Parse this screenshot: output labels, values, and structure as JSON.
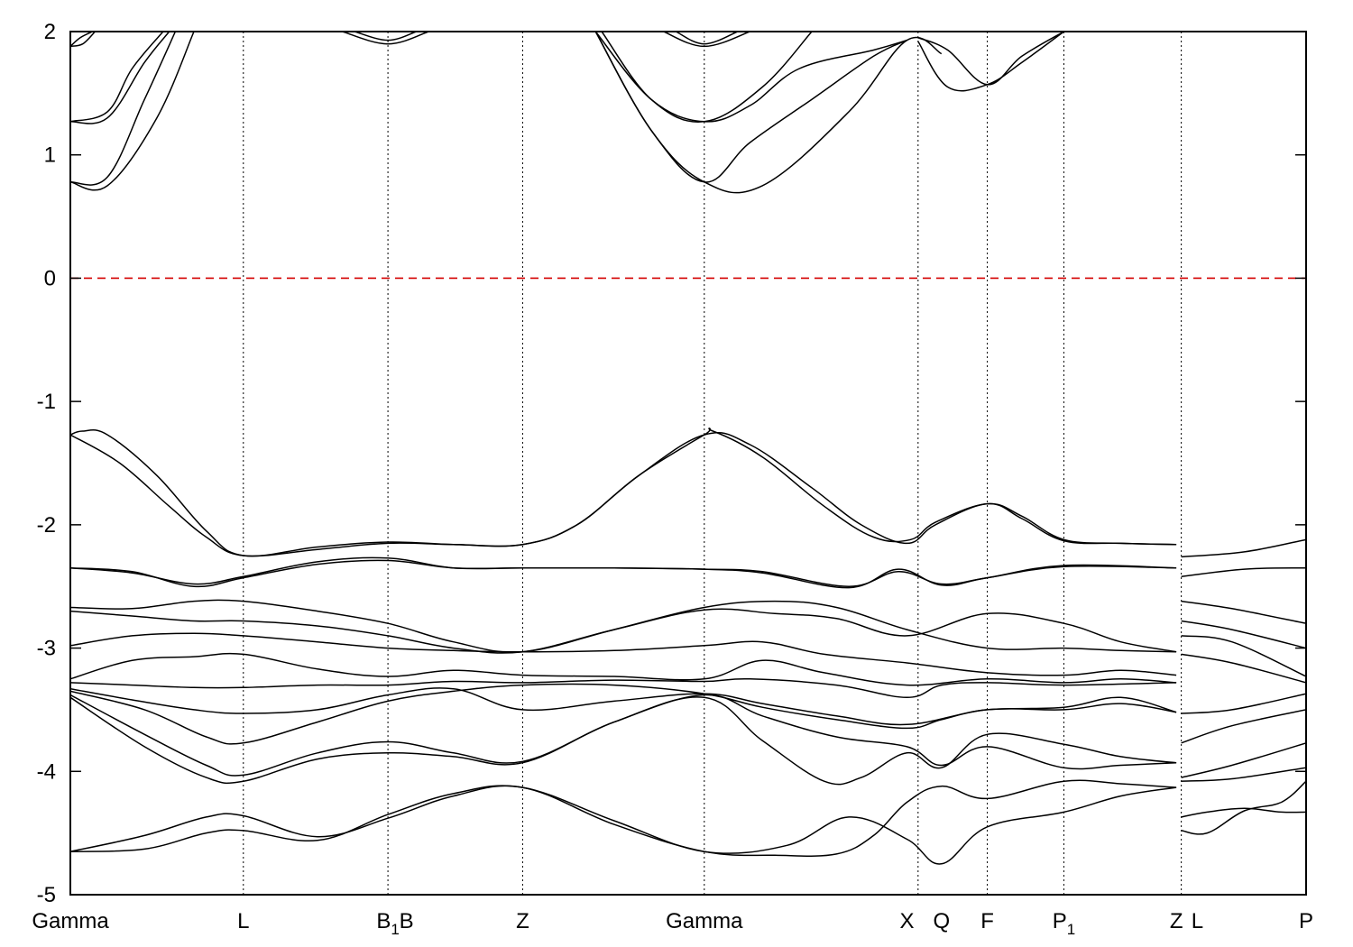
{
  "chart_data": {
    "type": "line",
    "title": "",
    "xlabel": "",
    "ylabel": "",
    "ylim": [
      -5,
      2
    ],
    "yticks": [
      -5,
      -4,
      -3,
      -2,
      -1,
      0,
      1,
      2
    ],
    "xlim": [
      0,
      10
    ],
    "kpoints": [
      {
        "label": "Gamma",
        "sub": "",
        "x": 0.0
      },
      {
        "label": "L",
        "sub": "",
        "x": 1.4
      },
      {
        "label": "B",
        "sub": "1",
        "x": 2.57
      },
      {
        "label": "B",
        "sub": "",
        "x": 2.72
      },
      {
        "label": "Z",
        "sub": "",
        "x": 3.66
      },
      {
        "label": "Gamma",
        "sub": "",
        "x": 5.13
      },
      {
        "label": "X",
        "sub": "",
        "x": 6.77
      },
      {
        "label": "Q",
        "sub": "",
        "x": 7.05
      },
      {
        "label": "F",
        "sub": "",
        "x": 7.42
      },
      {
        "label": "P",
        "sub": "1",
        "x": 8.04
      },
      {
        "label": "Z",
        "sub": "",
        "x": 8.95
      },
      {
        "label": "L",
        "sub": "",
        "x": 9.12
      },
      {
        "label": "P",
        "sub": "",
        "x": 10.0
      }
    ],
    "vlines": [
      1.4,
      2.57,
      3.66,
      5.13,
      6.86,
      7.42,
      8.04,
      8.99
    ],
    "fermi_level": 0,
    "grid": false,
    "legend": "none",
    "colors": {
      "bands": "#000000",
      "fermi": "#d40000"
    },
    "series": [
      {
        "x": [
          0.0,
          0.4,
          0.8,
          1.1,
          1.4,
          2.0,
          2.57,
          3.1,
          3.66,
          4.1,
          4.6,
          5.13,
          5.5,
          6.0,
          6.4,
          6.77,
          7.0,
          7.42,
          7.7,
          8.04,
          8.5,
          8.95
        ],
        "values": [
          -1.27,
          -1.5,
          -1.85,
          -2.1,
          -2.25,
          -2.2,
          -2.15,
          -2.16,
          -2.16,
          -2.0,
          -1.6,
          -1.27,
          -1.35,
          -1.7,
          -2.0,
          -2.15,
          -2.0,
          -1.83,
          -1.95,
          -2.13,
          -2.15,
          -2.16
        ]
      },
      {
        "x": [
          0.0,
          0.1,
          0.3,
          0.7,
          1.1,
          1.4,
          2.0,
          2.57,
          3.1,
          3.66,
          4.1,
          4.6,
          5.13,
          5.2,
          5.6,
          6.1,
          6.5,
          6.8,
          7.0,
          7.42,
          7.7,
          8.04,
          8.5,
          8.95
        ],
        "values": [
          -1.27,
          -1.24,
          -1.27,
          -1.6,
          -2.05,
          -2.25,
          -2.18,
          -2.14,
          -2.16,
          -2.16,
          -2.0,
          -1.6,
          -1.27,
          -1.24,
          -1.45,
          -1.85,
          -2.1,
          -2.12,
          -1.98,
          -1.83,
          -1.93,
          -2.12,
          -2.15,
          -2.16
        ]
      },
      {
        "x": [
          8.99,
          9.5,
          10.0
        ],
        "values": [
          -2.26,
          -2.22,
          -2.12
        ]
      },
      {
        "x": [
          8.99,
          9.5,
          10.0
        ],
        "values": [
          -2.42,
          -2.36,
          -2.35
        ]
      },
      {
        "x": [
          0.0,
          0.5,
          1.0,
          1.4,
          2.0,
          2.57,
          3.1,
          3.66,
          4.4,
          5.13,
          5.6,
          6.3,
          6.7,
          7.05,
          7.42,
          8.04,
          8.95
        ],
        "values": [
          -2.35,
          -2.38,
          -2.5,
          -2.43,
          -2.32,
          -2.29,
          -2.35,
          -2.35,
          -2.35,
          -2.36,
          -2.38,
          -2.5,
          -2.38,
          -2.48,
          -2.43,
          -2.33,
          -2.35
        ]
      },
      {
        "x": [
          0.0,
          0.5,
          1.0,
          1.4,
          2.0,
          2.57,
          3.1,
          3.66,
          4.4,
          5.13,
          5.6,
          6.3,
          6.7,
          7.05,
          7.42,
          8.04,
          8.95
        ],
        "values": [
          -2.35,
          -2.39,
          -2.48,
          -2.42,
          -2.3,
          -2.27,
          -2.35,
          -2.35,
          -2.35,
          -2.36,
          -2.39,
          -2.51,
          -2.36,
          -2.49,
          -2.43,
          -2.34,
          -2.35
        ]
      },
      {
        "x": [
          0.0,
          0.5,
          1.0,
          1.4,
          2.0,
          2.57,
          3.1,
          3.66,
          4.4,
          5.13,
          5.7,
          6.2,
          6.77,
          7.42,
          8.04,
          8.5,
          8.95
        ],
        "values": [
          -2.67,
          -2.68,
          -2.62,
          -2.62,
          -2.7,
          -2.8,
          -2.95,
          -3.03,
          -2.85,
          -2.67,
          -2.62,
          -2.67,
          -2.85,
          -3.0,
          -3.0,
          -3.02,
          -3.03
        ]
      },
      {
        "x": [
          0.0,
          0.5,
          1.0,
          1.4,
          2.0,
          2.57,
          3.1,
          3.66,
          4.4,
          5.13,
          5.7,
          6.2,
          6.77,
          7.42,
          8.04,
          8.5,
          8.95
        ],
        "values": [
          -2.7,
          -2.74,
          -2.78,
          -2.78,
          -2.82,
          -2.9,
          -3.0,
          -3.03,
          -2.85,
          -2.69,
          -2.72,
          -2.76,
          -2.9,
          -2.72,
          -2.8,
          -2.95,
          -3.03
        ]
      },
      {
        "x": [
          0.0,
          0.5,
          1.0,
          1.4,
          2.0,
          2.57,
          3.1,
          3.66,
          4.4,
          5.13,
          5.6,
          6.1,
          6.77,
          7.42,
          8.04,
          8.5,
          8.95
        ],
        "values": [
          -2.98,
          -2.9,
          -2.88,
          -2.9,
          -2.95,
          -3.0,
          -3.02,
          -3.03,
          -3.02,
          -2.98,
          -2.95,
          -3.05,
          -3.12,
          -3.2,
          -3.22,
          -3.18,
          -3.22
        ]
      },
      {
        "x": [
          0.0,
          0.5,
          1.0,
          1.4,
          2.0,
          2.57,
          3.1,
          3.66,
          4.4,
          5.13,
          5.6,
          6.1,
          6.77,
          7.42,
          8.04,
          8.5,
          8.95
        ],
        "values": [
          -3.25,
          -3.1,
          -3.07,
          -3.05,
          -3.17,
          -3.23,
          -3.18,
          -3.22,
          -3.23,
          -3.25,
          -3.1,
          -3.2,
          -3.3,
          -3.25,
          -3.28,
          -3.25,
          -3.28
        ]
      },
      {
        "x": [
          0.0,
          0.5,
          1.0,
          1.4,
          2.0,
          2.57,
          3.1,
          3.66,
          4.4,
          5.13,
          5.5,
          6.2,
          6.77,
          7.05,
          7.42,
          8.04,
          8.95
        ],
        "values": [
          -3.28,
          -3.3,
          -3.32,
          -3.32,
          -3.3,
          -3.3,
          -3.27,
          -3.28,
          -3.26,
          -3.27,
          -3.25,
          -3.3,
          -3.4,
          -3.3,
          -3.28,
          -3.3,
          -3.28
        ]
      },
      {
        "x": [
          0.0,
          0.5,
          1.0,
          1.4,
          2.0,
          2.57,
          3.1,
          3.66,
          4.4,
          5.13,
          5.6,
          6.2,
          6.77,
          7.42,
          8.04,
          8.5,
          8.95
        ],
        "values": [
          -3.33,
          -3.42,
          -3.5,
          -3.53,
          -3.5,
          -3.38,
          -3.33,
          -3.5,
          -3.43,
          -3.37,
          -3.45,
          -3.55,
          -3.62,
          -3.5,
          -3.5,
          -3.45,
          -3.52
        ]
      },
      {
        "x": [
          0.0,
          0.6,
          1.1,
          1.4,
          2.0,
          2.57,
          3.1,
          3.66,
          4.4,
          5.13,
          5.6,
          6.2,
          6.77,
          7.05,
          7.42,
          8.04,
          8.5,
          8.95
        ],
        "values": [
          -3.35,
          -3.5,
          -3.72,
          -3.77,
          -3.6,
          -3.43,
          -3.35,
          -3.3,
          -3.3,
          -3.37,
          -3.48,
          -3.58,
          -3.65,
          -3.58,
          -3.5,
          -3.48,
          -3.4,
          -3.52
        ]
      },
      {
        "x": [
          0.0,
          0.6,
          1.1,
          1.4,
          2.0,
          2.57,
          3.1,
          3.66,
          4.4,
          5.13,
          5.6,
          6.2,
          6.77,
          7.05,
          7.42,
          8.04,
          8.5,
          8.95
        ],
        "values": [
          -3.38,
          -3.7,
          -3.95,
          -4.03,
          -3.85,
          -3.76,
          -3.85,
          -3.92,
          -3.6,
          -3.38,
          -3.55,
          -3.72,
          -3.8,
          -3.95,
          -3.8,
          -3.97,
          -3.95,
          -3.93
        ]
      },
      {
        "x": [
          0.0,
          0.6,
          1.1,
          1.4,
          2.0,
          2.57,
          3.1,
          3.66,
          4.4,
          5.13,
          5.6,
          6.1,
          6.4,
          6.77,
          7.05,
          7.42,
          8.04,
          8.5,
          8.95
        ],
        "values": [
          -3.4,
          -3.8,
          -4.05,
          -4.08,
          -3.9,
          -3.85,
          -3.88,
          -3.93,
          -3.6,
          -3.4,
          -3.75,
          -4.08,
          -4.05,
          -3.85,
          -3.97,
          -3.7,
          -3.78,
          -3.88,
          -3.93
        ]
      },
      {
        "x": [
          0.0,
          0.6,
          1.1,
          1.4,
          2.0,
          2.57,
          3.1,
          3.66,
          4.4,
          5.13,
          5.8,
          6.3,
          6.77,
          7.05,
          7.42,
          8.04,
          8.5,
          8.95
        ],
        "values": [
          -4.65,
          -4.63,
          -4.5,
          -4.48,
          -4.56,
          -4.35,
          -4.18,
          -4.13,
          -4.4,
          -4.65,
          -4.6,
          -4.37,
          -4.55,
          -4.75,
          -4.45,
          -4.33,
          -4.2,
          -4.13
        ]
      },
      {
        "x": [
          0.0,
          0.6,
          1.1,
          1.4,
          2.0,
          2.57,
          3.1,
          3.66,
          4.4,
          5.13,
          5.7,
          6.2,
          6.5,
          6.77,
          7.05,
          7.42,
          8.04,
          8.5,
          8.95
        ],
        "values": [
          -4.65,
          -4.52,
          -4.37,
          -4.36,
          -4.53,
          -4.38,
          -4.2,
          -4.13,
          -4.43,
          -4.65,
          -4.68,
          -4.67,
          -4.52,
          -4.25,
          -4.12,
          -4.22,
          -4.08,
          -4.1,
          -4.13
        ]
      },
      {
        "x": [
          8.99,
          9.4,
          10.0
        ],
        "values": [
          -2.62,
          -2.68,
          -2.8
        ]
      },
      {
        "x": [
          8.99,
          9.4,
          10.0
        ],
        "values": [
          -2.78,
          -2.85,
          -3.0
        ]
      },
      {
        "x": [
          8.99,
          9.4,
          10.0
        ],
        "values": [
          -2.9,
          -2.95,
          -3.23
        ]
      },
      {
        "x": [
          8.99,
          9.4,
          10.0
        ],
        "values": [
          -3.05,
          -3.12,
          -3.28
        ]
      },
      {
        "x": [
          8.99,
          9.4,
          10.0
        ],
        "values": [
          -3.53,
          -3.5,
          -3.37
        ]
      },
      {
        "x": [
          8.99,
          9.4,
          10.0
        ],
        "values": [
          -3.77,
          -3.63,
          -3.5
        ]
      },
      {
        "x": [
          8.99,
          9.4,
          10.0
        ],
        "values": [
          -4.05,
          -3.95,
          -3.77
        ]
      },
      {
        "x": [
          8.99,
          9.4,
          10.0
        ],
        "values": [
          -4.08,
          -4.06,
          -3.97
        ]
      },
      {
        "x": [
          8.99,
          9.2,
          9.5,
          9.8,
          10.0
        ],
        "values": [
          -4.37,
          -4.33,
          -4.3,
          -4.33,
          -4.33
        ]
      },
      {
        "x": [
          8.99,
          9.2,
          9.5,
          9.8,
          10.0
        ],
        "values": [
          -4.48,
          -4.5,
          -4.32,
          -4.25,
          -4.08
        ]
      },
      {
        "x": [
          0.0,
          0.3,
          0.7,
          1.0
        ],
        "values": [
          0.78,
          0.75,
          1.3,
          2.0
        ]
      },
      {
        "x": [
          0.0,
          0.3,
          0.6,
          0.85
        ],
        "values": [
          0.78,
          0.82,
          1.45,
          2.0
        ]
      },
      {
        "x": [
          0.0,
          0.3,
          0.6,
          0.8
        ],
        "values": [
          1.27,
          1.3,
          1.75,
          2.0
        ]
      },
      {
        "x": [
          0.0,
          0.3,
          0.5,
          0.75
        ],
        "values": [
          1.27,
          1.35,
          1.7,
          2.0
        ]
      },
      {
        "x": [
          0.0,
          0.1,
          0.2
        ],
        "values": [
          1.88,
          1.9,
          2.0
        ]
      },
      {
        "x": [
          0.0,
          0.08,
          0.18
        ],
        "values": [
          1.88,
          1.95,
          2.0
        ]
      },
      {
        "x": [
          2.2,
          2.57,
          2.9
        ],
        "values": [
          2.0,
          1.9,
          2.0
        ]
      },
      {
        "x": [
          2.3,
          2.57,
          2.8
        ],
        "values": [
          2.0,
          1.93,
          2.0
        ]
      },
      {
        "x": [
          4.25,
          4.7,
          5.13,
          5.6,
          6.3,
          6.77,
          7.05
        ],
        "values": [
          2.0,
          1.2,
          0.78,
          0.75,
          1.35,
          1.93,
          1.82
        ]
      },
      {
        "x": [
          4.25,
          4.7,
          5.13,
          5.5,
          6.0,
          6.5,
          6.77
        ],
        "values": [
          2.0,
          1.2,
          0.78,
          1.1,
          1.45,
          1.8,
          1.93
        ]
      },
      {
        "x": [
          4.25,
          4.7,
          5.13,
          5.5,
          5.9,
          6.5,
          6.77
        ],
        "values": [
          2.0,
          1.45,
          1.27,
          1.4,
          1.7,
          1.85,
          1.93
        ]
      },
      {
        "x": [
          4.3,
          4.7,
          5.13,
          5.6,
          6.0
        ],
        "values": [
          2.0,
          1.45,
          1.27,
          1.55,
          2.0
        ]
      },
      {
        "x": [
          4.8,
          5.13,
          5.5
        ],
        "values": [
          2.0,
          1.88,
          2.0
        ]
      },
      {
        "x": [
          4.9,
          5.13,
          5.4
        ],
        "values": [
          2.0,
          1.9,
          2.0
        ]
      },
      {
        "x": [
          6.86,
          7.1,
          7.42,
          7.7,
          8.04
        ],
        "values": [
          1.92,
          1.55,
          1.57,
          1.75,
          2.0
        ]
      },
      {
        "x": [
          6.86,
          7.1,
          7.42,
          7.7,
          8.04
        ],
        "values": [
          1.95,
          1.85,
          1.57,
          1.8,
          2.0
        ]
      }
    ]
  }
}
